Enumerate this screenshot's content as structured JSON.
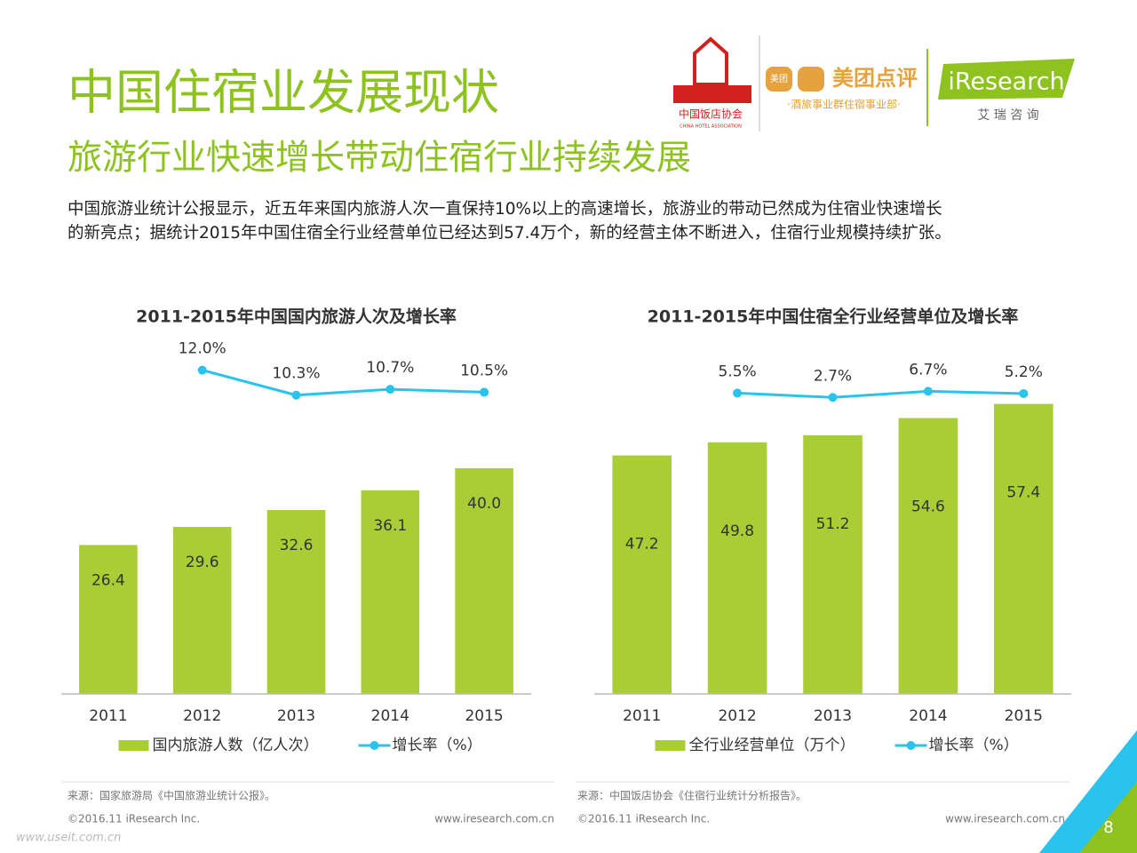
{
  "header": {
    "title": "中国住宿业发展现状",
    "subtitle": "旅游行业快速增长带动住宿行业持续发展",
    "paragraph": [
      "中国旅游业统计公报显示，近五年来国内旅游人次一直保持10%以上的高速增长，旅游业的带动已然成为住宿业快速增长",
      "的新亮点；据统计2015年中国住宿全行业经营单位已经达到57.4万个，新的经营主体不断进入，住宿行业规模持续扩张。"
    ],
    "logos": {
      "cha_name": "中国饭店协会",
      "cha_en": "CHINA HOTEL ASSOCIATION",
      "meituan_icon": "美团",
      "meituan": "美团点评",
      "meituan_dept": "·酒旅事业群住宿事业部·",
      "iresearch": "iResearch",
      "iresearch_cn": "艾 瑞 咨 询"
    }
  },
  "chart_data": [
    {
      "type": "bar",
      "title": "2011-2015年中国国内旅游人次及增长率",
      "categories": [
        "2011",
        "2012",
        "2013",
        "2014",
        "2015"
      ],
      "series": [
        {
          "name": "国内旅游人数（亿人次）",
          "color": "#a8cd35",
          "values": [
            26.4,
            29.6,
            32.6,
            36.1,
            40.0
          ],
          "value_labels": [
            "26.4",
            "29.6",
            "32.6",
            "36.1",
            "40.0"
          ]
        },
        {
          "name": "增长率（%）",
          "type": "line",
          "axis": "y2",
          "color": "#29c3ee",
          "values": [
            null,
            12.0,
            10.3,
            10.7,
            10.5
          ],
          "value_labels": [
            null,
            "12.0%",
            "10.3%",
            "10.7%",
            "10.5%"
          ]
        }
      ],
      "ylim": [
        0,
        60
      ],
      "y2lim": [
        -10,
        13
      ],
      "legend": "bottom"
    },
    {
      "type": "bar",
      "title": "2011-2015年中国住宿全行业经营单位及增长率",
      "categories": [
        "2011",
        "2012",
        "2013",
        "2014",
        "2015"
      ],
      "series": [
        {
          "name": "全行业经营单位（万个）",
          "color": "#a8cd35",
          "values": [
            47.2,
            49.8,
            51.2,
            54.6,
            57.4
          ]
        },
        {
          "name": "增长率（%）",
          "type": "line",
          "axis": "y2",
          "color": "#29c3ee",
          "values": [
            null,
            5.5,
            2.7,
            6.7,
            5.2
          ],
          "value_labels": [
            null,
            "5.5%",
            "2.7%",
            "6.7%",
            "5.2%"
          ]
        }
      ],
      "ylim": [
        0,
        67
      ],
      "y2lim": [
        -190,
        30
      ],
      "legend": "bottom"
    }
  ],
  "footer": {
    "panels": [
      {
        "source": "来源：国家旅游局《中国旅游业统计公报》。",
        "copyright": "©2016.11 iResearch Inc.",
        "url": "www.iresearch.com.cn"
      },
      {
        "source": "来源：中国饭店协会《住宿行业统计分析报告》。",
        "copyright": "©2016.11 iResearch Inc.",
        "url": "www.iresearch.com.cn"
      }
    ],
    "page": "8",
    "watermark": "www.useit.com.cn"
  }
}
